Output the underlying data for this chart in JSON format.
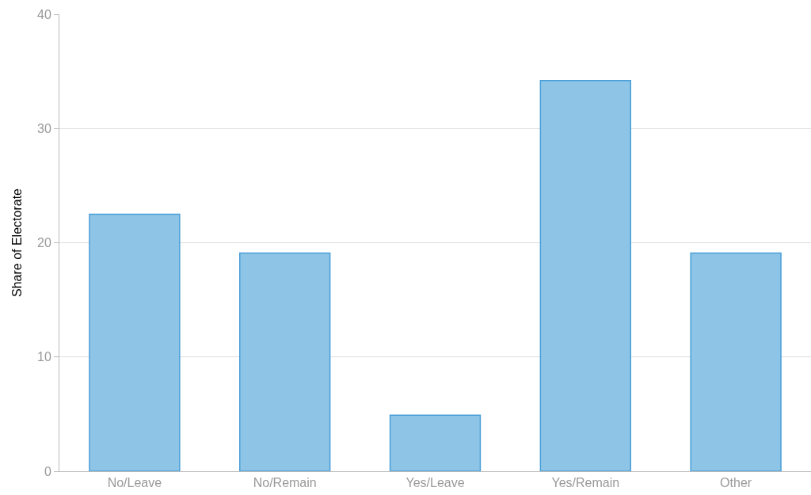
{
  "chart_data": {
    "type": "bar",
    "ylabel": "Share of Electorate",
    "categories": [
      "No/Leave",
      "No/Remain",
      "Yes/Leave",
      "Yes/Remain",
      "Other"
    ],
    "values": [
      22.5,
      19.1,
      4.9,
      34.2,
      19.1
    ],
    "color": "#8ec4e6",
    "ylim": [
      0,
      40
    ],
    "yticks": [
      0,
      10,
      20,
      30,
      40
    ],
    "grid": "y",
    "legend": false
  }
}
